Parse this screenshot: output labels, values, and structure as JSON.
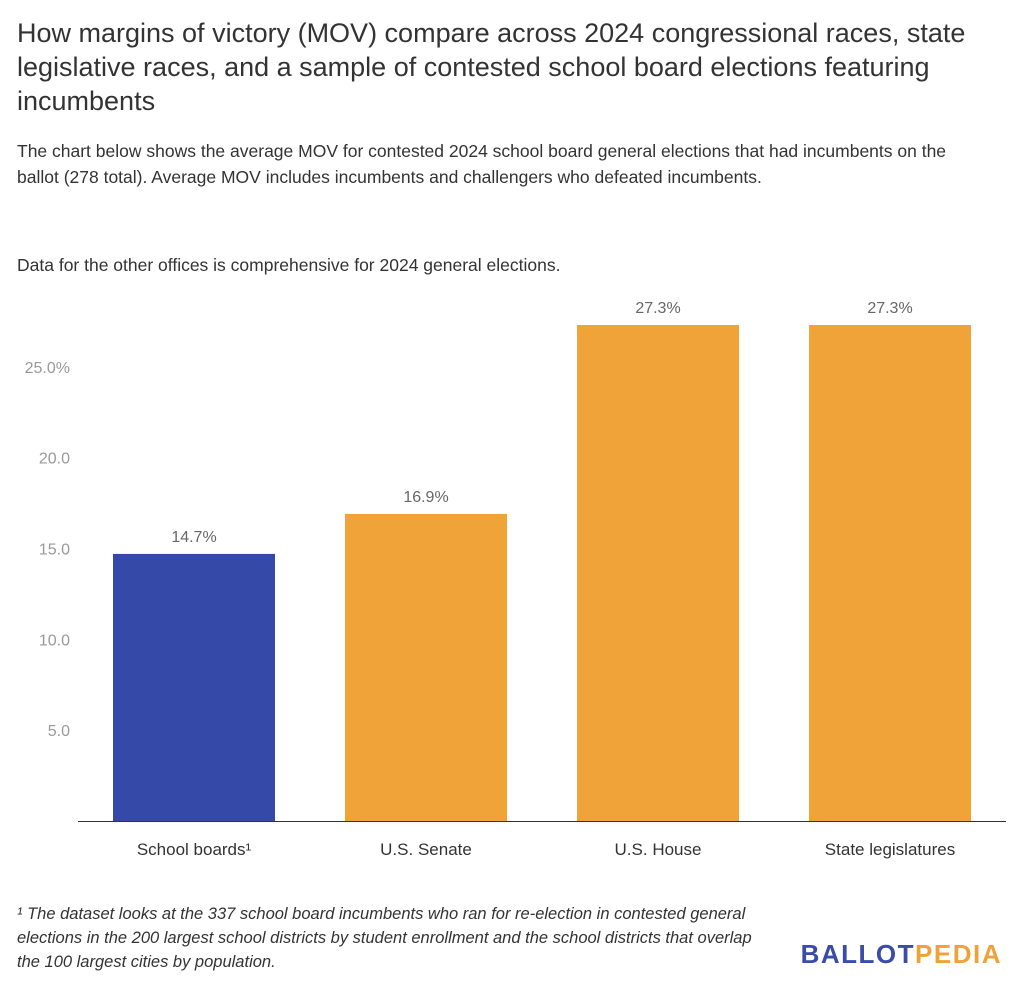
{
  "header": {
    "title": "How margins of victory (MOV) compare across 2024 congressional races, state legislative races, and a sample of contested school board elections featuring incumbents",
    "subtitle": "The chart below shows the average MOV for contested 2024 school board general elections that had incumbents on the ballot (278 total). Average MOV includes incumbents and challengers who defeated incumbents.",
    "note": "Data for the other offices is comprehensive for 2024 general elections."
  },
  "chart_data": {
    "type": "bar",
    "categories": [
      "School boards¹",
      "U.S. Senate",
      "U.S. House",
      "State legislatures"
    ],
    "values": [
      14.7,
      16.9,
      27.3,
      27.3
    ],
    "value_labels": [
      "14.7%",
      "16.9%",
      "27.3%",
      "27.3%"
    ],
    "colors": [
      "#354aa8",
      "#f0a339",
      "#f0a339",
      "#f0a339"
    ],
    "yticks": [
      5,
      10,
      15,
      20,
      25
    ],
    "ytick_labels": [
      "5.0",
      "10.0",
      "15.0",
      "20.0",
      "25.0%"
    ],
    "ylim": [
      0,
      27.3
    ],
    "grid": false,
    "title": "",
    "xlabel": "",
    "ylabel": ""
  },
  "footer": {
    "footnote": "¹ The dataset looks at the 337 school board incumbents who ran for re-election in contested general elections in the 200 largest school districts by student enrollment and the school districts that overlap the 100 largest cities by population.",
    "logo_part1": "BALLOT",
    "logo_part2": "PEDIA"
  }
}
